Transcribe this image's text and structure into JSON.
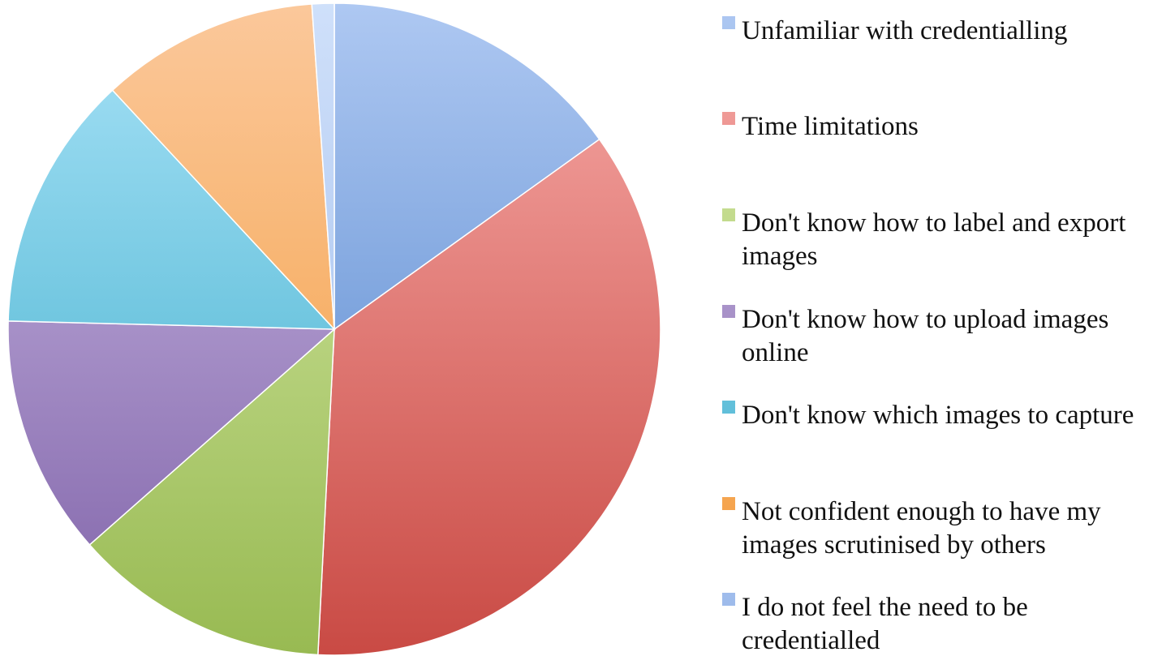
{
  "chart_data": {
    "type": "pie",
    "title": "",
    "legend_position": "right",
    "slices": [
      {
        "label": "Unfamiliar with credentialling",
        "value": 15.1,
        "color": "#4a7ec8",
        "light": "#aec8f2"
      },
      {
        "label": "Time limitations",
        "value": 35.7,
        "color": "#c94a44",
        "light": "#f7aaa7"
      },
      {
        "label": "Don't know how to label and export images",
        "value": 12.7,
        "color": "#98ba52",
        "light": "#d8ebab"
      },
      {
        "label": "Don't know how to upload images online",
        "value": 11.9,
        "color": "#7f62a8",
        "light": "#cdbde6"
      },
      {
        "label": "Don't know which images to capture",
        "value": 12.7,
        "color": "#37aac8",
        "light": "#a8e2f7"
      },
      {
        "label": "Not confident enough to have my images scrutinised by others",
        "value": 10.8,
        "color": "#f39a38",
        "light": "#fbc89b"
      },
      {
        "label": "I do not feel the need to be credentialled",
        "value": 1.1,
        "color": "#9ab8ea",
        "light": "#cfe0fa"
      }
    ]
  },
  "legend": {
    "items": [
      {
        "lines": [
          "Unfamiliar with credentialling"
        ]
      },
      {
        "lines": [
          "Time limitations"
        ]
      },
      {
        "lines": [
          "Don't know how to label and export",
          "images"
        ]
      },
      {
        "lines": [
          "Don't know how to upload images",
          "online"
        ]
      },
      {
        "lines": [
          "Don't know which images to capture"
        ]
      },
      {
        "lines": [
          "Not confident enough to have my",
          "images scrutinised by others"
        ]
      },
      {
        "lines": [
          "I do not feel the need to be",
          "credentialled"
        ]
      }
    ]
  }
}
